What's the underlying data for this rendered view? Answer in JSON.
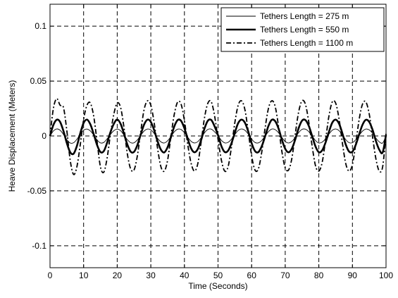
{
  "chart_data": {
    "type": "line",
    "title": "",
    "xlabel": "Time (Seconds)",
    "ylabel": "Heave Displacement (Meters)",
    "xlim": [
      0,
      100
    ],
    "ylim": [
      -0.12,
      0.12
    ],
    "x_ticks": [
      0,
      10,
      20,
      30,
      40,
      50,
      60,
      70,
      80,
      90,
      100
    ],
    "x_tick_labels": [
      "0",
      "10",
      "20",
      "30",
      "40",
      "50",
      "60",
      "70",
      "80",
      "90",
      "100"
    ],
    "y_ticks": [
      -0.1,
      -0.05,
      0,
      0.05,
      0.1
    ],
    "y_tick_labels": [
      "-0.1",
      "-0.05",
      "0",
      "0.05",
      "0.1"
    ],
    "grid": true,
    "legend_position": "top-right",
    "series": [
      {
        "name": "Tethers Length = 275 m",
        "style": "thin-solid",
        "color": "#000000",
        "x": [
          0,
          1,
          2,
          3,
          4,
          5,
          6,
          7,
          8,
          9,
          10,
          11,
          12,
          13,
          14,
          15,
          16,
          17,
          18,
          19,
          20,
          21,
          22,
          23,
          24,
          25,
          26,
          27,
          28,
          29,
          30,
          31,
          32,
          33,
          34,
          35,
          36,
          37,
          38,
          39,
          40,
          41,
          42,
          43,
          44,
          45,
          46,
          47,
          48,
          49,
          50,
          51,
          52,
          53,
          54,
          55,
          56,
          57,
          58,
          59,
          60,
          61,
          62,
          63,
          64,
          65,
          66,
          67,
          68,
          69,
          70,
          71,
          72,
          73,
          74,
          75,
          76,
          77,
          78,
          79,
          80,
          81,
          82,
          83,
          84,
          85,
          86,
          87,
          88,
          89,
          90,
          91,
          92,
          93,
          94,
          95,
          96,
          97,
          98,
          99,
          100
        ],
        "y": [
          0.0,
          0.0045,
          0.0064,
          0.0052,
          0.0014,
          -0.0034,
          -0.0064,
          -0.0062,
          -0.003,
          0.0016,
          0.0052,
          0.0063,
          0.0046,
          0.0008,
          -0.0036,
          -0.0063,
          -0.0059,
          -0.0026,
          0.0015,
          0.0048,
          0.0063,
          0.0048,
          0.0009,
          -0.0033,
          -0.0061,
          -0.0062,
          -0.0036,
          0.0006,
          0.0045,
          0.0063,
          0.0055,
          0.0023,
          -0.0021,
          -0.0054,
          -0.0064,
          -0.0044,
          -0.0004,
          0.0038,
          0.0062,
          0.0059,
          0.003,
          -0.0012,
          -0.0049,
          -0.0064,
          -0.0051,
          -0.0015,
          0.003,
          0.006,
          0.0062,
          0.0037,
          0.0003,
          -0.004,
          -0.0063,
          -0.0058,
          -0.0029,
          0.0013,
          0.005,
          0.0064,
          0.0052,
          0.0017,
          -0.0028,
          -0.0059,
          -0.0063,
          -0.0041,
          -0.0002,
          0.0039,
          0.0063,
          0.0058,
          0.003,
          -0.0014,
          -0.005,
          -0.0064,
          -0.0049,
          -0.0013,
          0.0031,
          0.006,
          0.0062,
          0.004,
          0.0,
          -0.0041,
          -0.0064,
          -0.0056,
          -0.0026,
          0.0016,
          0.0052,
          0.0064,
          0.0049,
          0.0011,
          -0.0033,
          -0.0061,
          -0.0061,
          -0.0034,
          0.0006,
          0.0044,
          0.0063,
          0.0055,
          0.0024,
          -0.002,
          -0.0054,
          -0.0064,
          0.0
        ]
      },
      {
        "name": "Tethers Length = 550 m",
        "style": "thick-solid",
        "color": "#000000",
        "x": [
          0,
          1,
          2,
          3,
          4,
          5,
          6,
          7,
          8,
          9,
          10,
          11,
          12,
          13,
          14,
          15,
          16,
          17,
          18,
          19,
          20,
          21,
          22,
          23,
          24,
          25,
          26,
          27,
          28,
          29,
          30,
          31,
          32,
          33,
          34,
          35,
          36,
          37,
          38,
          39,
          40,
          41,
          42,
          43,
          44,
          45,
          46,
          47,
          48,
          49,
          50,
          51,
          52,
          53,
          54,
          55,
          56,
          57,
          58,
          59,
          60,
          61,
          62,
          63,
          64,
          65,
          66,
          67,
          68,
          69,
          70,
          71,
          72,
          73,
          74,
          75,
          76,
          77,
          78,
          79,
          80,
          81,
          82,
          83,
          84,
          85,
          86,
          87,
          88,
          89,
          90,
          91,
          92,
          93,
          94,
          95,
          96,
          97,
          98,
          99,
          100
        ],
        "y": [
          0.0,
          0.01,
          0.0148,
          0.0128,
          0.0045,
          -0.0064,
          -0.0148,
          -0.0162,
          -0.0091,
          0.0024,
          0.0118,
          0.0149,
          0.0106,
          0.0017,
          -0.0082,
          -0.0146,
          -0.0138,
          -0.0061,
          0.0036,
          0.0111,
          0.015,
          0.0111,
          0.0021,
          -0.0077,
          -0.0143,
          -0.0145,
          -0.0083,
          0.0014,
          0.0104,
          0.0149,
          0.0128,
          0.0053,
          -0.0048,
          -0.0125,
          -0.015,
          -0.0102,
          -0.001,
          0.0088,
          0.0145,
          0.0138,
          0.007,
          -0.0028,
          -0.0114,
          -0.0149,
          -0.0118,
          -0.0035,
          0.007,
          0.014,
          0.0145,
          0.0086,
          0.0007,
          -0.0092,
          -0.0146,
          -0.0134,
          -0.0067,
          0.003,
          0.0117,
          0.0149,
          0.0121,
          0.004,
          -0.0065,
          -0.0137,
          -0.0147,
          -0.0095,
          -0.0005,
          0.0091,
          0.0147,
          0.0135,
          0.0069,
          -0.0033,
          -0.0117,
          -0.0149,
          -0.0114,
          -0.003,
          0.0072,
          0.0139,
          0.0145,
          0.0093,
          0.0,
          -0.0095,
          -0.0148,
          -0.0131,
          -0.006,
          0.0037,
          0.0121,
          0.0149,
          0.0114,
          0.0025,
          -0.0077,
          -0.0142,
          -0.0143,
          -0.008,
          0.0014,
          0.0102,
          0.0147,
          0.0128,
          0.0056,
          -0.0047,
          -0.0126,
          -0.015,
          0.001
        ]
      },
      {
        "name": "Tethers Length = 1100 m",
        "style": "dash-dot",
        "color": "#000000",
        "x": [
          0,
          1,
          2,
          3,
          4,
          5,
          6,
          7,
          8,
          9,
          10,
          11,
          12,
          13,
          14,
          15,
          16,
          17,
          18,
          19,
          20,
          21,
          22,
          23,
          24,
          25,
          26,
          27,
          28,
          29,
          30,
          31,
          32,
          33,
          34,
          35,
          36,
          37,
          38,
          39,
          40,
          41,
          42,
          43,
          44,
          45,
          46,
          47,
          48,
          49,
          50,
          51,
          52,
          53,
          54,
          55,
          56,
          57,
          58,
          59,
          60,
          61,
          62,
          63,
          64,
          65,
          66,
          67,
          68,
          69,
          70,
          71,
          72,
          73,
          74,
          75,
          76,
          77,
          78,
          79,
          80,
          81,
          82,
          83,
          84,
          85,
          86,
          87,
          88,
          89,
          90,
          91,
          92,
          93,
          94,
          95,
          96,
          97,
          98,
          99,
          100
        ],
        "y": [
          0.0,
          0.025,
          0.034,
          0.028,
          0.026,
          0.005,
          -0.022,
          -0.035,
          -0.028,
          -0.008,
          0.015,
          0.028,
          0.03,
          0.018,
          -0.005,
          -0.028,
          -0.033,
          -0.02,
          0.002,
          0.02,
          0.03,
          0.026,
          0.008,
          -0.016,
          -0.03,
          -0.031,
          -0.018,
          0.004,
          0.024,
          0.032,
          0.028,
          0.012,
          -0.011,
          -0.028,
          -0.032,
          -0.022,
          0.0,
          0.02,
          0.031,
          0.029,
          0.014,
          -0.008,
          -0.025,
          -0.032,
          -0.025,
          -0.005,
          0.017,
          0.03,
          0.031,
          0.018,
          -0.003,
          -0.022,
          -0.032,
          -0.028,
          -0.01,
          0.012,
          0.028,
          0.032,
          0.024,
          0.004,
          -0.018,
          -0.031,
          -0.03,
          -0.015,
          0.007,
          0.025,
          0.032,
          0.027,
          0.009,
          -0.014,
          -0.029,
          -0.031,
          -0.02,
          0.002,
          0.022,
          0.032,
          0.029,
          0.013,
          -0.009,
          -0.027,
          -0.032,
          -0.024,
          -0.004,
          0.018,
          0.031,
          0.03,
          0.016,
          -0.006,
          -0.025,
          -0.032,
          -0.026,
          -0.007,
          0.015,
          0.029,
          0.031,
          0.02,
          -0.001,
          -0.021,
          -0.032,
          -0.028,
          0.002
        ]
      }
    ]
  }
}
